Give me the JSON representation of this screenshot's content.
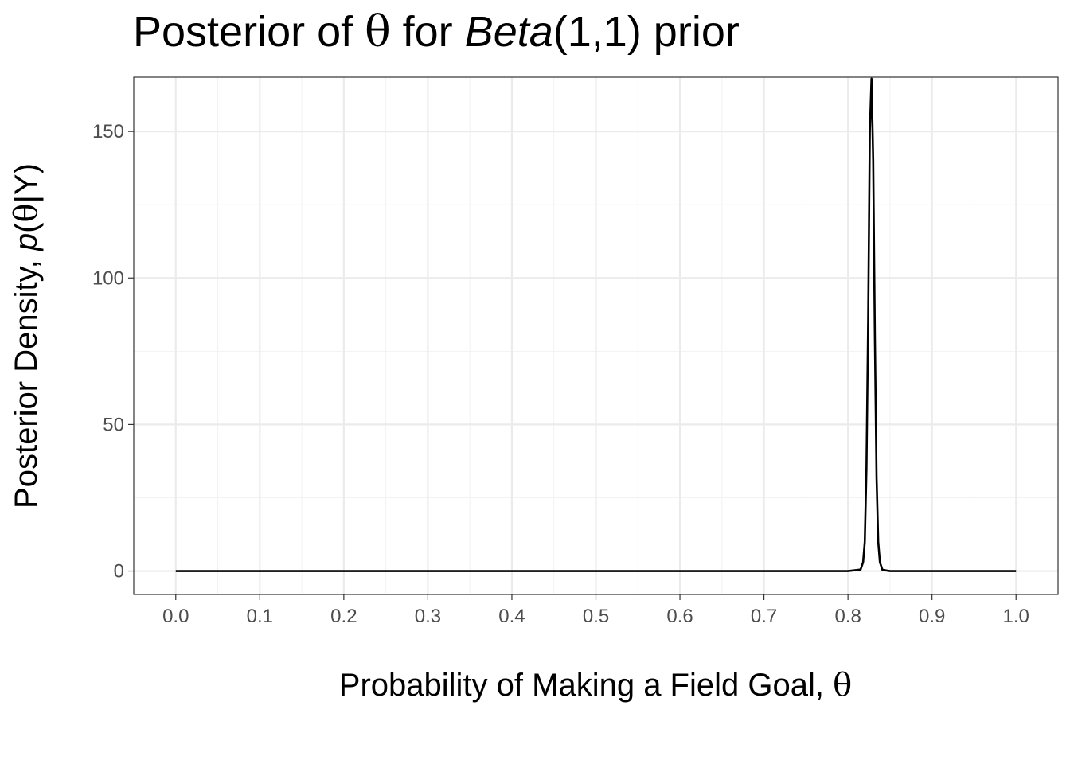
{
  "chart_data": {
    "type": "line",
    "title": {
      "prefix": "Posterior of ",
      "symbol": "θ",
      "middle": " for ",
      "italic": "Beta",
      "suffix": "(1,1) prior"
    },
    "xlabel": {
      "text": "Probability of Making a Field Goal, ",
      "symbol": "θ"
    },
    "ylabel": {
      "text": "Posterior Density, ",
      "italic": "p",
      "paren_open": "(",
      "symbol": "θ",
      "rest": "|Y)"
    },
    "xlim": [
      -0.05,
      1.05
    ],
    "ylim": [
      -8,
      168.5
    ],
    "x_ticks": [
      0.0,
      0.1,
      0.2,
      0.3,
      0.4,
      0.5,
      0.6,
      0.7,
      0.8,
      0.9,
      1.0
    ],
    "x_tick_labels": [
      "0.0",
      "0.1",
      "0.2",
      "0.3",
      "0.4",
      "0.5",
      "0.6",
      "0.7",
      "0.8",
      "0.9",
      "1.0"
    ],
    "y_ticks": [
      0,
      50,
      100,
      150
    ],
    "y_tick_labels": [
      "0",
      "50",
      "100",
      "150"
    ],
    "grid": true,
    "series": [
      {
        "color": "#000000",
        "x": [
          0.0,
          0.1,
          0.2,
          0.3,
          0.4,
          0.5,
          0.6,
          0.7,
          0.8,
          0.815,
          0.818,
          0.82,
          0.822,
          0.824,
          0.826,
          0.828,
          0.83,
          0.832,
          0.834,
          0.836,
          0.838,
          0.841,
          0.85,
          0.9,
          1.0
        ],
        "y": [
          0,
          0,
          0,
          0,
          0,
          0,
          0,
          0,
          0,
          0.5,
          3,
          10,
          35,
          85,
          150,
          168,
          140,
          80,
          32,
          10,
          3,
          0.4,
          0,
          0,
          0
        ]
      }
    ]
  }
}
